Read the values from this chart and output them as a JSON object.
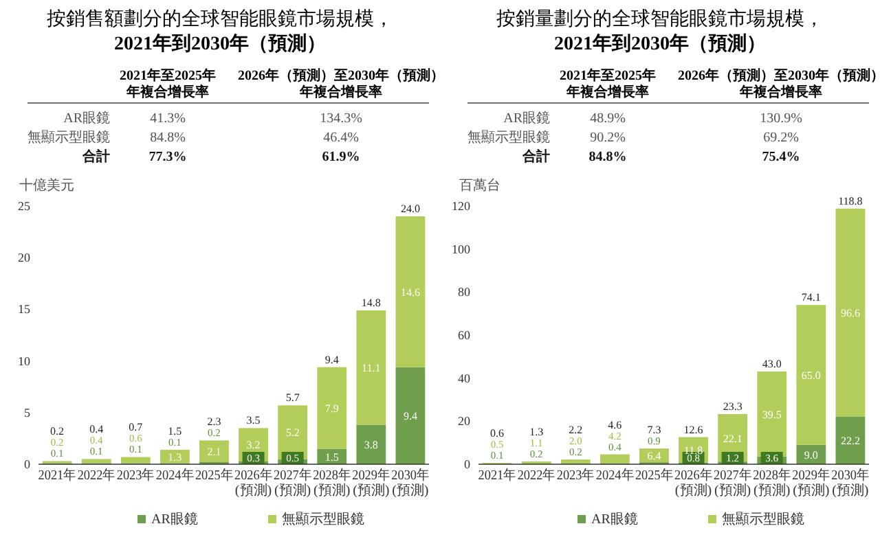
{
  "chart_data": [
    {
      "type": "bar",
      "title": "按銷售額劃分的全球智能眼鏡市場規模，\n2021年到2030年（預測）",
      "ylabel": "十億美元",
      "categories": [
        "2021年",
        "2022年",
        "2023年",
        "2024年",
        "2025年",
        "2026年\n(預測)",
        "2027年\n(預測)",
        "2028年\n(預測)",
        "2029年\n(預測)",
        "2030年\n(預測)"
      ],
      "stacked": true,
      "series": [
        {
          "name": "AR眼鏡",
          "color": "#6f9f4c",
          "values": [
            0.1,
            0.1,
            0.1,
            0.1,
            0.2,
            0.3,
            0.5,
            1.5,
            3.8,
            9.4
          ],
          "value_labels": [
            "0.1",
            "0.1",
            "0.1",
            "0.1",
            "0.2",
            "0.3",
            "0.5",
            "1.5",
            "3.8",
            "9.4"
          ]
        },
        {
          "name": "無顯示型眼鏡",
          "color": "#b3cd5b",
          "values": [
            0.2,
            0.4,
            0.6,
            1.3,
            2.1,
            3.2,
            5.2,
            7.9,
            11.1,
            14.6
          ],
          "value_labels": [
            "0.2",
            "0.4",
            "0.6",
            "1.3",
            "2.1",
            "3.2",
            "5.2",
            "7.9",
            "11.1",
            "14.6"
          ]
        }
      ],
      "totals": [
        "0.2",
        "0.4",
        "0.7",
        "1.5",
        "2.3",
        "3.5",
        "5.7",
        "9.4",
        "14.8",
        "24.0"
      ],
      "ylim": [
        0,
        25
      ],
      "yticks": [
        0,
        5,
        10,
        15,
        20,
        25
      ],
      "legend": "bottom",
      "annotations": [
        "2021年至2025年年複合增長率",
        "2026年（預測）至2030年（預測）年複合增長率",
        "AR眼鏡",
        "41.3%",
        "134.3%",
        "無顯示型眼鏡",
        "84.8%",
        "46.4%",
        "合計",
        "77.3%",
        "61.9%"
      ]
    },
    {
      "type": "bar",
      "title": "按銷量劃分的全球智能眼鏡市場規模，\n2021年到2030年（預測）",
      "ylabel": "百萬台",
      "categories": [
        "2021年",
        "2022年",
        "2023年",
        "2024年",
        "2025年",
        "2026年\n(預測)",
        "2027年\n(預測)",
        "2028年\n(預測)",
        "2029年\n(預測)",
        "2030年\n(預測)"
      ],
      "stacked": true,
      "series": [
        {
          "name": "AR眼鏡",
          "color": "#6f9f4c",
          "values": [
            0.1,
            0.2,
            0.2,
            0.4,
            0.9,
            0.8,
            1.2,
            3.6,
            9.0,
            22.2
          ],
          "value_labels": [
            "0.1",
            "0.2",
            "0.2",
            "0.4",
            "0.9",
            "0.8",
            "1.2",
            "3.6",
            "9.0",
            "22.2"
          ]
        },
        {
          "name": "無顯示型眼鏡",
          "color": "#b3cd5b",
          "values": [
            0.5,
            1.1,
            2.0,
            4.2,
            6.4,
            11.8,
            22.1,
            39.5,
            65.0,
            96.6
          ],
          "value_labels": [
            "0.5",
            "1.1",
            "2.0",
            "4.2",
            "6.4",
            "11.8",
            "22.1",
            "39.5",
            "65.0",
            "96.6"
          ]
        }
      ],
      "totals": [
        "0.6",
        "1.3",
        "2.2",
        "4.6",
        "7.3",
        "12.6",
        "23.3",
        "43.0",
        "74.1",
        "118.8"
      ],
      "ylim": [
        0,
        120
      ],
      "yticks": [
        0,
        20,
        40,
        60,
        80,
        100,
        120
      ],
      "legend": "bottom",
      "annotations": [
        "2021年至2025年年複合增長率",
        "2026年（預測）至2030年（預測）年複合增長率",
        "AR眼鏡",
        "48.9%",
        "130.9%",
        "無顯示型眼鏡",
        "90.2%",
        "69.2%",
        "合計",
        "84.8%",
        "75.4%"
      ]
    }
  ]
}
